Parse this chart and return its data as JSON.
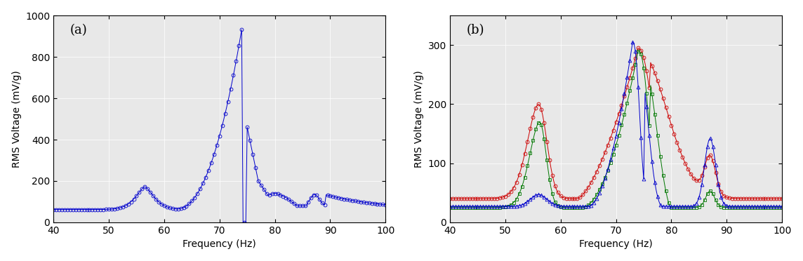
{
  "fig_width": 11.44,
  "fig_height": 3.72,
  "dpi": 100,
  "background_color": "#ffffff",
  "panel_a": {
    "label": "(a)",
    "xlabel": "Frequency (Hz)",
    "ylabel": "RMS Voltage (mV/g)",
    "xlim": [
      40,
      100
    ],
    "ylim": [
      0,
      1000
    ],
    "yticks": [
      0,
      200,
      400,
      600,
      800,
      1000
    ],
    "xticks": [
      40,
      50,
      60,
      70,
      80,
      90,
      100
    ],
    "color": "#0000cc",
    "marker": "o",
    "markersize": 3.5,
    "linewidth": 0.7
  },
  "panel_b": {
    "label": "(b)",
    "xlabel": "Frequency (Hz)",
    "ylabel": "RMS Voltage (mV/g)",
    "xlim": [
      40,
      100
    ],
    "ylim": [
      0,
      350
    ],
    "yticks": [
      0,
      100,
      200,
      300
    ],
    "xticks": [
      40,
      50,
      60,
      70,
      80,
      90,
      100
    ],
    "colors": [
      "#cc0000",
      "#007700",
      "#0000cc"
    ],
    "markers": [
      "o",
      "s",
      "^"
    ],
    "markersize": 3.5,
    "linewidth": 0.7
  }
}
